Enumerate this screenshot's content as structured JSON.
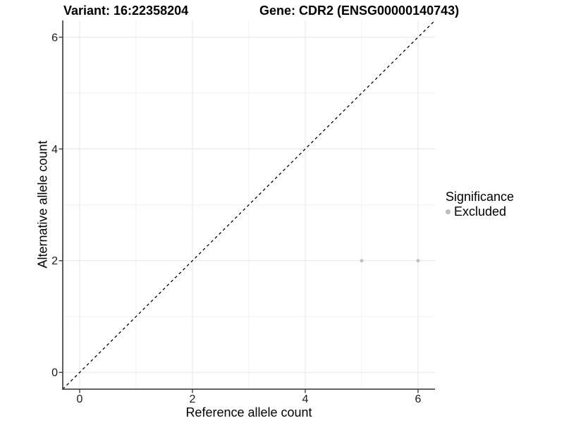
{
  "header": {
    "variant_title": "Variant: 16:22358204",
    "gene_title": "Gene: CDR2 (ENSG00000140743)"
  },
  "chart_data": {
    "type": "scatter",
    "xlabel": "Reference allele count",
    "ylabel": "Alternative allele count",
    "xlim": [
      -0.3,
      6.3
    ],
    "ylim": [
      -0.3,
      6.3
    ],
    "x_major_ticks": [
      0,
      2,
      4,
      6
    ],
    "x_minor_ticks": [
      1,
      3,
      5
    ],
    "y_major_ticks": [
      0,
      2,
      4,
      6
    ],
    "y_minor_ticks": [
      1,
      3,
      5
    ],
    "grid": true,
    "identity_line": {
      "style": "dashed",
      "color": "#000000",
      "dash": "4 4",
      "width": 1.3
    },
    "series": [
      {
        "name": "Excluded",
        "color": "#bebebe",
        "point_radius": 2.4,
        "points": [
          {
            "x": 5,
            "y": 2
          },
          {
            "x": 6,
            "y": 2
          }
        ]
      }
    ],
    "legend": {
      "title": "Significance",
      "position": "right",
      "items": [
        {
          "label": "Excluded",
          "color": "#bcbcbc",
          "marker": "circle"
        }
      ]
    },
    "colors": {
      "background": "#ffffff",
      "axis_line": "#4d4d4d",
      "tick_mark": "#333333",
      "major_grid": "#e5e5e5",
      "minor_grid": "#f2f2f2",
      "tick_label": "#1a1a1a"
    }
  }
}
